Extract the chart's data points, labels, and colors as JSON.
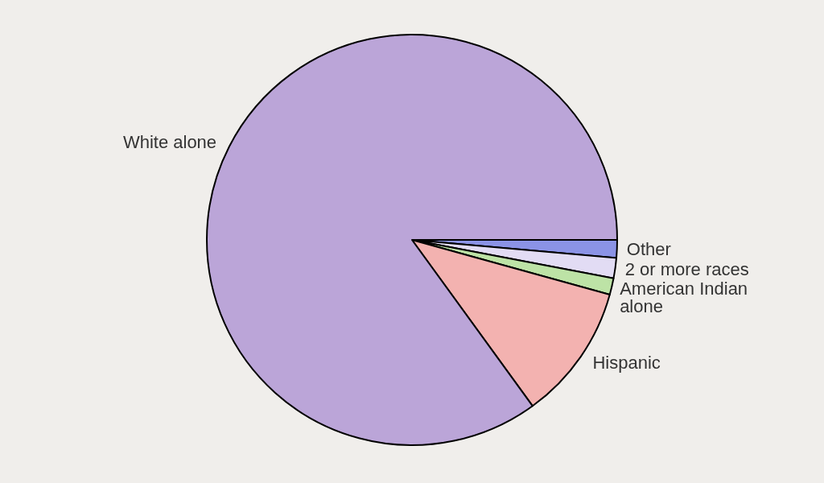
{
  "chart_data": {
    "type": "pie",
    "categories": [
      "Other",
      "2 or more races",
      "American Indian alone",
      "Hispanic",
      "White alone"
    ],
    "values": [
      1.4,
      1.6,
      1.3,
      10.7,
      85.0
    ],
    "colors": [
      "#8b93e6",
      "#e2dcf4",
      "#bde3a6",
      "#f3b2b0",
      "#bba5d8"
    ]
  }
}
